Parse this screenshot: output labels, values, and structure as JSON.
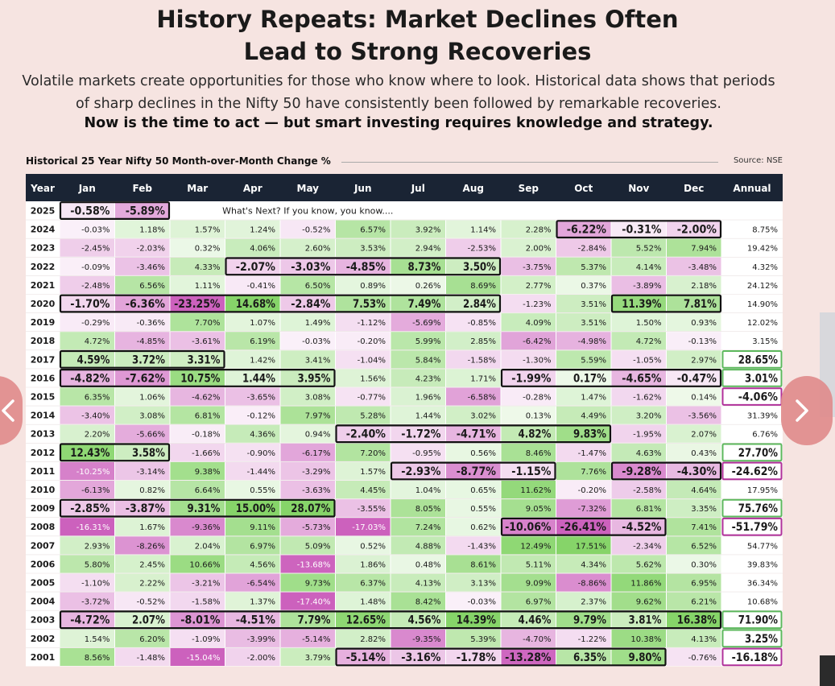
{
  "title_lines": [
    "History Repeats: Market Declines Often",
    "Lead to Strong Recoveries"
  ],
  "subtitle_lines": [
    "Volatile markets create opportunities for those who know where to look. Historical data shows that periods",
    "of sharp declines in the Nifty 50 have consistently been followed by remarkable recoveries."
  ],
  "cta": "Now is the time to act — but smart investing requires knowledge and strategy.",
  "table_title": "Historical 25 Year Nifty 50 Month-over-Month Change %",
  "source": "Source: NSE",
  "icons": {
    "prev": "chevron-left-icon",
    "next": "chevron-right-icon"
  },
  "colors": {
    "header_bg": "#1a2434",
    "positive": "#6bcb48",
    "negative": "#c855b8",
    "highlight_border": "#111111",
    "annual_up_border": "#5cb85c",
    "annual_down_border": "#b0309a",
    "nav_button": "#e08c8c"
  },
  "chart_data": {
    "type": "table",
    "columns": [
      "Year",
      "Jan",
      "Feb",
      "Mar",
      "Apr",
      "May",
      "Jun",
      "Jul",
      "Aug",
      "Sep",
      "Oct",
      "Nov",
      "Dec",
      "Annual"
    ],
    "note_2025": "What's Next? If you know, you know....",
    "rows": [
      {
        "year": "2025",
        "values": [
          "-0.58%",
          "-5.89%",
          null,
          null,
          null,
          null,
          null,
          null,
          null,
          null,
          null,
          null,
          null
        ]
      },
      {
        "year": "2024",
        "values": [
          "-0.03%",
          "1.18%",
          "1.57%",
          "1.24%",
          "-0.52%",
          "6.57%",
          "3.92%",
          "1.14%",
          "2.28%",
          "-6.22%",
          "-0.31%",
          "-2.00%",
          "8.75%"
        ]
      },
      {
        "year": "2023",
        "values": [
          "-2.45%",
          "-2.03%",
          "0.32%",
          "4.06%",
          "2.60%",
          "3.53%",
          "2.94%",
          "-2.53%",
          "2.00%",
          "-2.84%",
          "5.52%",
          "7.94%",
          "19.42%"
        ]
      },
      {
        "year": "2022",
        "values": [
          "-0.09%",
          "-3.46%",
          "4.33%",
          "-2.07%",
          "-3.03%",
          "-4.85%",
          "8.73%",
          "3.50%",
          "-3.75%",
          "5.37%",
          "4.14%",
          "-3.48%",
          "4.32%"
        ]
      },
      {
        "year": "2021",
        "values": [
          "-2.48%",
          "6.56%",
          "1.11%",
          "-0.41%",
          "6.50%",
          "0.89%",
          "0.26%",
          "8.69%",
          "2.77%",
          "0.37%",
          "-3.89%",
          "2.18%",
          "24.12%"
        ]
      },
      {
        "year": "2020",
        "values": [
          "-1.70%",
          "-6.36%",
          "-23.25%",
          "14.68%",
          "-2.84%",
          "7.53%",
          "7.49%",
          "2.84%",
          "-1.23%",
          "3.51%",
          "11.39%",
          "7.81%",
          "14.90%"
        ]
      },
      {
        "year": "2019",
        "values": [
          "-0.29%",
          "-0.36%",
          "7.70%",
          "1.07%",
          "1.49%",
          "-1.12%",
          "-5.69%",
          "-0.85%",
          "4.09%",
          "3.51%",
          "1.50%",
          "0.93%",
          "12.02%"
        ]
      },
      {
        "year": "2018",
        "values": [
          "4.72%",
          "-4.85%",
          "-3.61%",
          "6.19%",
          "-0.03%",
          "-0.20%",
          "5.99%",
          "2.85%",
          "-6.42%",
          "-4.98%",
          "4.72%",
          "-0.13%",
          "3.15%"
        ]
      },
      {
        "year": "2017",
        "values": [
          "4.59%",
          "3.72%",
          "3.31%",
          "1.42%",
          "3.41%",
          "-1.04%",
          "5.84%",
          "-1.58%",
          "-1.30%",
          "5.59%",
          "-1.05%",
          "2.97%",
          "28.65%"
        ]
      },
      {
        "year": "2016",
        "values": [
          "-4.82%",
          "-7.62%",
          "10.75%",
          "1.44%",
          "3.95%",
          "1.56%",
          "4.23%",
          "1.71%",
          "-1.99%",
          "0.17%",
          "-4.65%",
          "-0.47%",
          "3.01%"
        ]
      },
      {
        "year": "2015",
        "values": [
          "6.35%",
          "1.06%",
          "-4.62%",
          "-3.65%",
          "3.08%",
          "-0.77%",
          "1.96%",
          "-6.58%",
          "-0.28%",
          "1.47%",
          "-1.62%",
          "0.14%",
          "-4.06%"
        ]
      },
      {
        "year": "2014",
        "values": [
          "-3.40%",
          "3.08%",
          "6.81%",
          "-0.12%",
          "7.97%",
          "5.28%",
          "1.44%",
          "3.02%",
          "0.13%",
          "4.49%",
          "3.20%",
          "-3.56%",
          "31.39%"
        ]
      },
      {
        "year": "2013",
        "values": [
          "2.20%",
          "-5.66%",
          "-0.18%",
          "4.36%",
          "0.94%",
          "-2.40%",
          "-1.72%",
          "-4.71%",
          "4.82%",
          "9.83%",
          "-1.95%",
          "2.07%",
          "6.76%"
        ]
      },
      {
        "year": "2012",
        "values": [
          "12.43%",
          "3.58%",
          "-1.66%",
          "-0.90%",
          "-6.17%",
          "7.20%",
          "-0.95%",
          "0.56%",
          "8.46%",
          "-1.47%",
          "4.63%",
          "0.43%",
          "27.70%"
        ]
      },
      {
        "year": "2011",
        "values": [
          "-10.25%",
          "-3.14%",
          "9.38%",
          "-1.44%",
          "-3.29%",
          "1.57%",
          "-2.93%",
          "-8.77%",
          "-1.15%",
          "7.76%",
          "-9.28%",
          "-4.30%",
          "-24.62%"
        ]
      },
      {
        "year": "2010",
        "values": [
          "-6.13%",
          "0.82%",
          "6.64%",
          "0.55%",
          "-3.63%",
          "4.45%",
          "1.04%",
          "0.65%",
          "11.62%",
          "-0.20%",
          "-2.58%",
          "4.64%",
          "17.95%"
        ]
      },
      {
        "year": "2009",
        "values": [
          "-2.85%",
          "-3.87%",
          "9.31%",
          "15.00%",
          "28.07%",
          "-3.55%",
          "8.05%",
          "0.55%",
          "9.05%",
          "-7.32%",
          "6.81%",
          "3.35%",
          "75.76%"
        ]
      },
      {
        "year": "2008",
        "values": [
          "-16.31%",
          "1.67%",
          "-9.36%",
          "9.11%",
          "-5.73%",
          "-17.03%",
          "7.24%",
          "0.62%",
          "-10.06%",
          "-26.41%",
          "-4.52%",
          "7.41%",
          "-51.79%"
        ]
      },
      {
        "year": "2007",
        "values": [
          "2.93%",
          "-8.26%",
          "2.04%",
          "6.97%",
          "5.09%",
          "0.52%",
          "4.88%",
          "-1.43%",
          "12.49%",
          "17.51%",
          "-2.34%",
          "6.52%",
          "54.77%"
        ]
      },
      {
        "year": "2006",
        "values": [
          "5.80%",
          "2.45%",
          "10.66%",
          "4.56%",
          "-13.68%",
          "1.86%",
          "0.48%",
          "8.61%",
          "5.11%",
          "4.34%",
          "5.62%",
          "0.30%",
          "39.83%"
        ]
      },
      {
        "year": "2005",
        "values": [
          "-1.10%",
          "2.22%",
          "-3.21%",
          "-6.54%",
          "9.73%",
          "6.37%",
          "4.13%",
          "3.13%",
          "9.09%",
          "-8.86%",
          "11.86%",
          "6.95%",
          "36.34%"
        ]
      },
      {
        "year": "2004",
        "values": [
          "-3.72%",
          "-0.52%",
          "-1.58%",
          "1.37%",
          "-17.40%",
          "1.48%",
          "8.42%",
          "-0.03%",
          "6.97%",
          "2.37%",
          "9.62%",
          "6.21%",
          "10.68%"
        ]
      },
      {
        "year": "2003",
        "values": [
          "-4.72%",
          "2.07%",
          "-8.01%",
          "-4.51%",
          "7.79%",
          "12.65%",
          "4.56%",
          "14.39%",
          "4.46%",
          "9.79%",
          "3.81%",
          "16.38%",
          "71.90%"
        ]
      },
      {
        "year": "2002",
        "values": [
          "1.54%",
          "6.20%",
          "-1.09%",
          "-3.99%",
          "-5.14%",
          "2.82%",
          "-9.35%",
          "5.39%",
          "-4.70%",
          "-1.22%",
          "10.38%",
          "4.13%",
          "3.25%"
        ]
      },
      {
        "year": "2001",
        "values": [
          "8.56%",
          "-1.48%",
          "-15.04%",
          "-2.00%",
          "3.79%",
          "-5.14%",
          "-3.16%",
          "-1.78%",
          "-13.28%",
          "6.35%",
          "9.80%",
          "-0.76%",
          "-16.18%"
        ]
      }
    ],
    "highlighted_ranges": [
      {
        "year": "2025",
        "from": "Jan",
        "to": "Feb"
      },
      {
        "year": "2024",
        "from": "Oct",
        "to": "Dec"
      },
      {
        "year": "2022",
        "from": "Apr",
        "to": "Aug"
      },
      {
        "year": "2020",
        "from": "Jan",
        "to": "Aug"
      },
      {
        "year": "2020",
        "from": "Nov",
        "to": "Dec"
      },
      {
        "year": "2017",
        "from": "Jan",
        "to": "Mar"
      },
      {
        "year": "2016",
        "from": "Jan",
        "to": "May"
      },
      {
        "year": "2016",
        "from": "Sep",
        "to": "Dec"
      },
      {
        "year": "2013",
        "from": "Jun",
        "to": "Oct"
      },
      {
        "year": "2012",
        "from": "Jan",
        "to": "Feb"
      },
      {
        "year": "2011",
        "from": "Jul",
        "to": "Sep"
      },
      {
        "year": "2011",
        "from": "Nov",
        "to": "Dec"
      },
      {
        "year": "2009",
        "from": "Jan",
        "to": "May"
      },
      {
        "year": "2008",
        "from": "Sep",
        "to": "Nov"
      },
      {
        "year": "2003",
        "from": "Jan",
        "to": "Dec"
      },
      {
        "year": "2001",
        "from": "Jun",
        "to": "Nov"
      }
    ],
    "highlighted_annual": [
      "2017",
      "2016",
      "2015",
      "2012",
      "2011",
      "2009",
      "2008",
      "2003",
      "2002",
      "2001"
    ]
  }
}
